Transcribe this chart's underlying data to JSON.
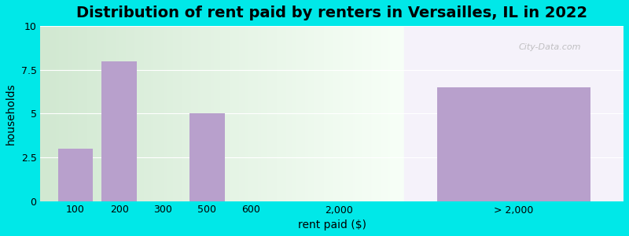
{
  "title": "Distribution of rent paid by renters in Versailles, IL in 2022",
  "xlabel": "rent paid ($)",
  "ylabel": "households",
  "categories": [
    "100",
    "200",
    "300",
    "500",
    "600",
    "2,000",
    "> 2,000"
  ],
  "values": [
    3,
    8,
    0,
    5,
    0,
    0,
    6.5
  ],
  "bar_color": "#b8a0cc",
  "outer_bg": "#00e8e8",
  "plot_bg": "#ddeedd",
  "ylim": [
    0,
    10
  ],
  "yticks": [
    0,
    2.5,
    5,
    7.5,
    10
  ],
  "x_positions": [
    0,
    1,
    2,
    3,
    4,
    6,
    10
  ],
  "bar_widths": [
    0.8,
    0.8,
    0.8,
    0.8,
    0.8,
    0.8,
    3.5
  ],
  "xlim": [
    -0.8,
    12.5
  ],
  "split_x": 7.5,
  "title_fontsize": 14,
  "axis_label_fontsize": 10,
  "tick_fontsize": 9,
  "watermark": "City-Data.com"
}
